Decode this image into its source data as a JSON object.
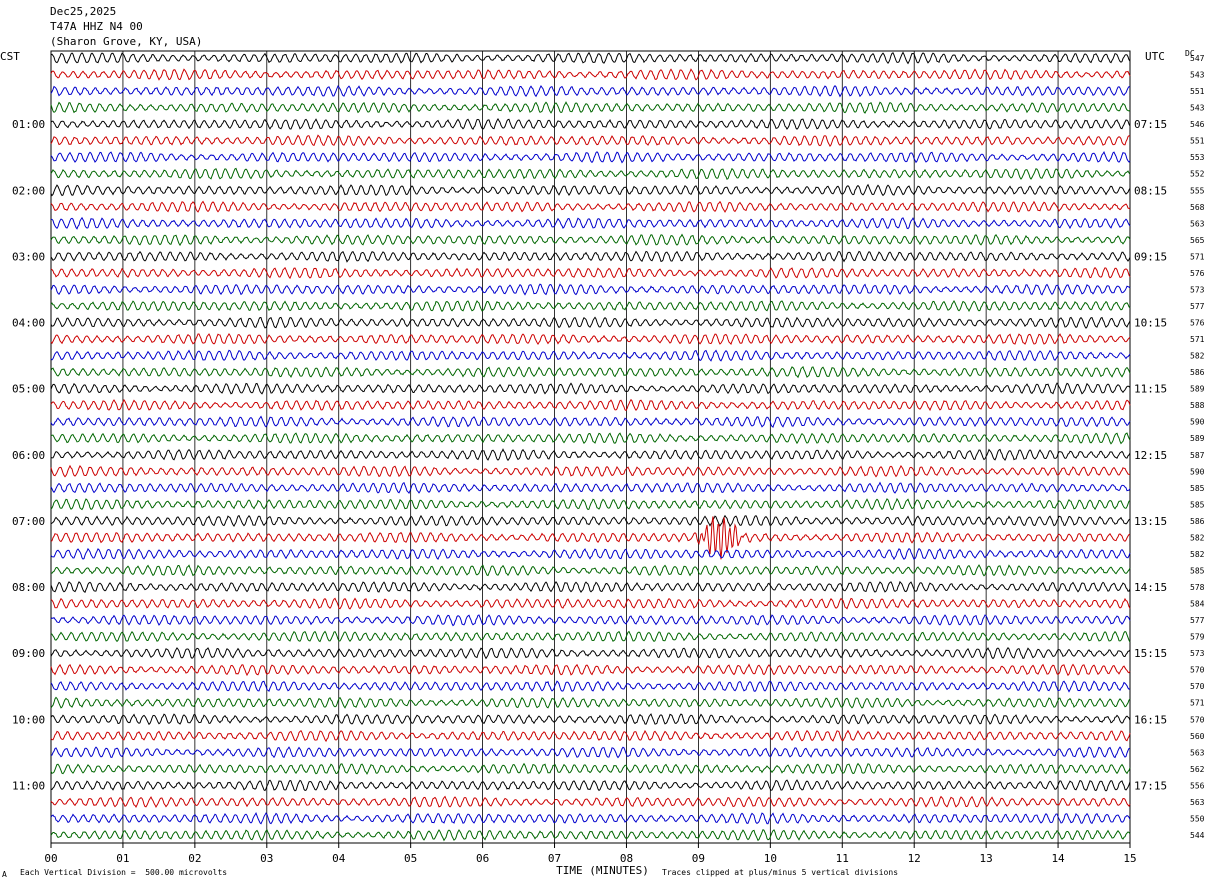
{
  "header": {
    "date": "Dec25,2025",
    "station": "T47A HHZ N4 00",
    "location": "(Sharon Grove, KY, USA)"
  },
  "left_tz": "CST",
  "right_tz": "UTC",
  "dc_label": "DC",
  "footer": {
    "scale": "Each Vertical Division =  500.00 microvolts",
    "clip": "Traces clipped at plus/minus 5 vertical divisions",
    "mark": "A"
  },
  "chart_data": {
    "type": "line",
    "title": "T47A HHZ N4 00",
    "xlabel": "TIME (MINUTES)",
    "ylabel": "",
    "xlim": [
      0,
      15
    ],
    "x_ticks": [
      "00",
      "01",
      "02",
      "03",
      "04",
      "05",
      "06",
      "07",
      "08",
      "09",
      "10",
      "11",
      "12",
      "13",
      "14",
      "15"
    ],
    "line_minutes": 15,
    "line_count": 48,
    "trace_colors": [
      "#000000",
      "#cc0000",
      "#0000cc",
      "#006600"
    ],
    "left_hour_labels": [
      "01:00",
      "02:00",
      "03:00",
      "04:00",
      "05:00",
      "06:00",
      "07:00",
      "08:00",
      "09:00",
      "10:00",
      "11:00"
    ],
    "right_hour_labels": [
      "07:15",
      "08:15",
      "09:15",
      "10:15",
      "11:15",
      "12:15",
      "13:15",
      "14:15",
      "15:15",
      "16:15",
      "17:15"
    ],
    "dc_offsets": [
      547,
      543,
      551,
      543,
      546,
      551,
      553,
      552,
      555,
      568,
      563,
      565,
      571,
      576,
      573,
      577,
      576,
      571,
      582,
      586,
      589,
      588,
      590,
      589,
      587,
      590,
      585,
      585,
      586,
      582,
      582,
      585,
      578,
      584,
      577,
      579,
      573,
      570,
      570,
      571,
      570,
      560,
      563,
      562,
      556,
      563,
      550,
      544
    ],
    "events": [
      {
        "line": 29,
        "minute": 9.3,
        "duration_min": 0.9,
        "amplitude_div": 3.5,
        "note": "clipped event"
      }
    ]
  }
}
